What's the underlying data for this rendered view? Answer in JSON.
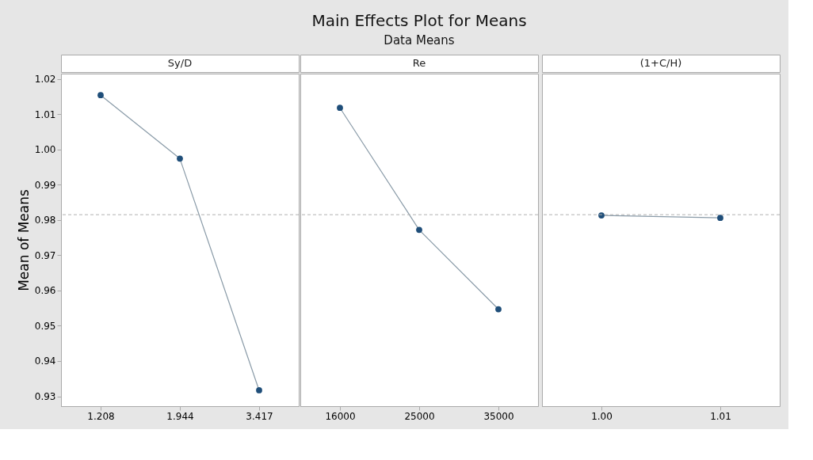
{
  "chart_data": [
    {
      "type": "line",
      "xlabel": "Sy/D",
      "ylabel": "Mean of Means",
      "categories": [
        "1.208",
        "1.944",
        "3.417"
      ],
      "series": [
        {
          "color": "#1f4e79",
          "values": [
            1.0154,
            0.9974,
            0.9317
          ]
        }
      ],
      "ylim": [
        0.9272,
        1.0215
      ],
      "yticks": [
        0.93,
        0.94,
        0.95,
        0.96,
        0.97,
        0.98,
        0.99,
        {
          "value": 1.0,
          "label": "1.00"
        },
        1.01,
        1.02
      ],
      "grid": false,
      "marker": "circle",
      "line_style": "solid",
      "ref_lines": [
        {
          "axis": "y",
          "value": 0.9815,
          "color": "#b0b0b0",
          "line_style": "dashed"
        }
      ]
    },
    {
      "type": "line",
      "title": "Main Effects Plot for Means",
      "subtitle": "Data Means",
      "xlabel": "Re",
      "categories": [
        "16000",
        "25000",
        "35000"
      ],
      "series": [
        {
          "color": "#1f4e79",
          "values": [
            1.0118,
            0.9772,
            0.9547
          ]
        }
      ],
      "ylim": [
        0.9272,
        1.0215
      ],
      "grid": false,
      "marker": "circle",
      "line_style": "solid",
      "tick_labels": "x",
      "ref_lines": [
        {
          "axis": "y",
          "value": 0.9815,
          "color": "#b0b0b0",
          "line_style": "dashed"
        }
      ]
    },
    {
      "type": "line",
      "xlabel": "(1+C/H)",
      "categories": [
        "1.00",
        "1.01"
      ],
      "series": [
        {
          "color": "#1f4e79",
          "values": [
            0.9813,
            0.9806
          ]
        }
      ],
      "ylim": [
        0.9272,
        1.0215
      ],
      "grid": false,
      "marker": "circle",
      "line_style": "solid",
      "tick_labels": "x",
      "ref_lines": [
        {
          "axis": "y",
          "value": 0.9815,
          "color": "#b0b0b0",
          "line_style": "dashed"
        }
      ]
    }
  ]
}
